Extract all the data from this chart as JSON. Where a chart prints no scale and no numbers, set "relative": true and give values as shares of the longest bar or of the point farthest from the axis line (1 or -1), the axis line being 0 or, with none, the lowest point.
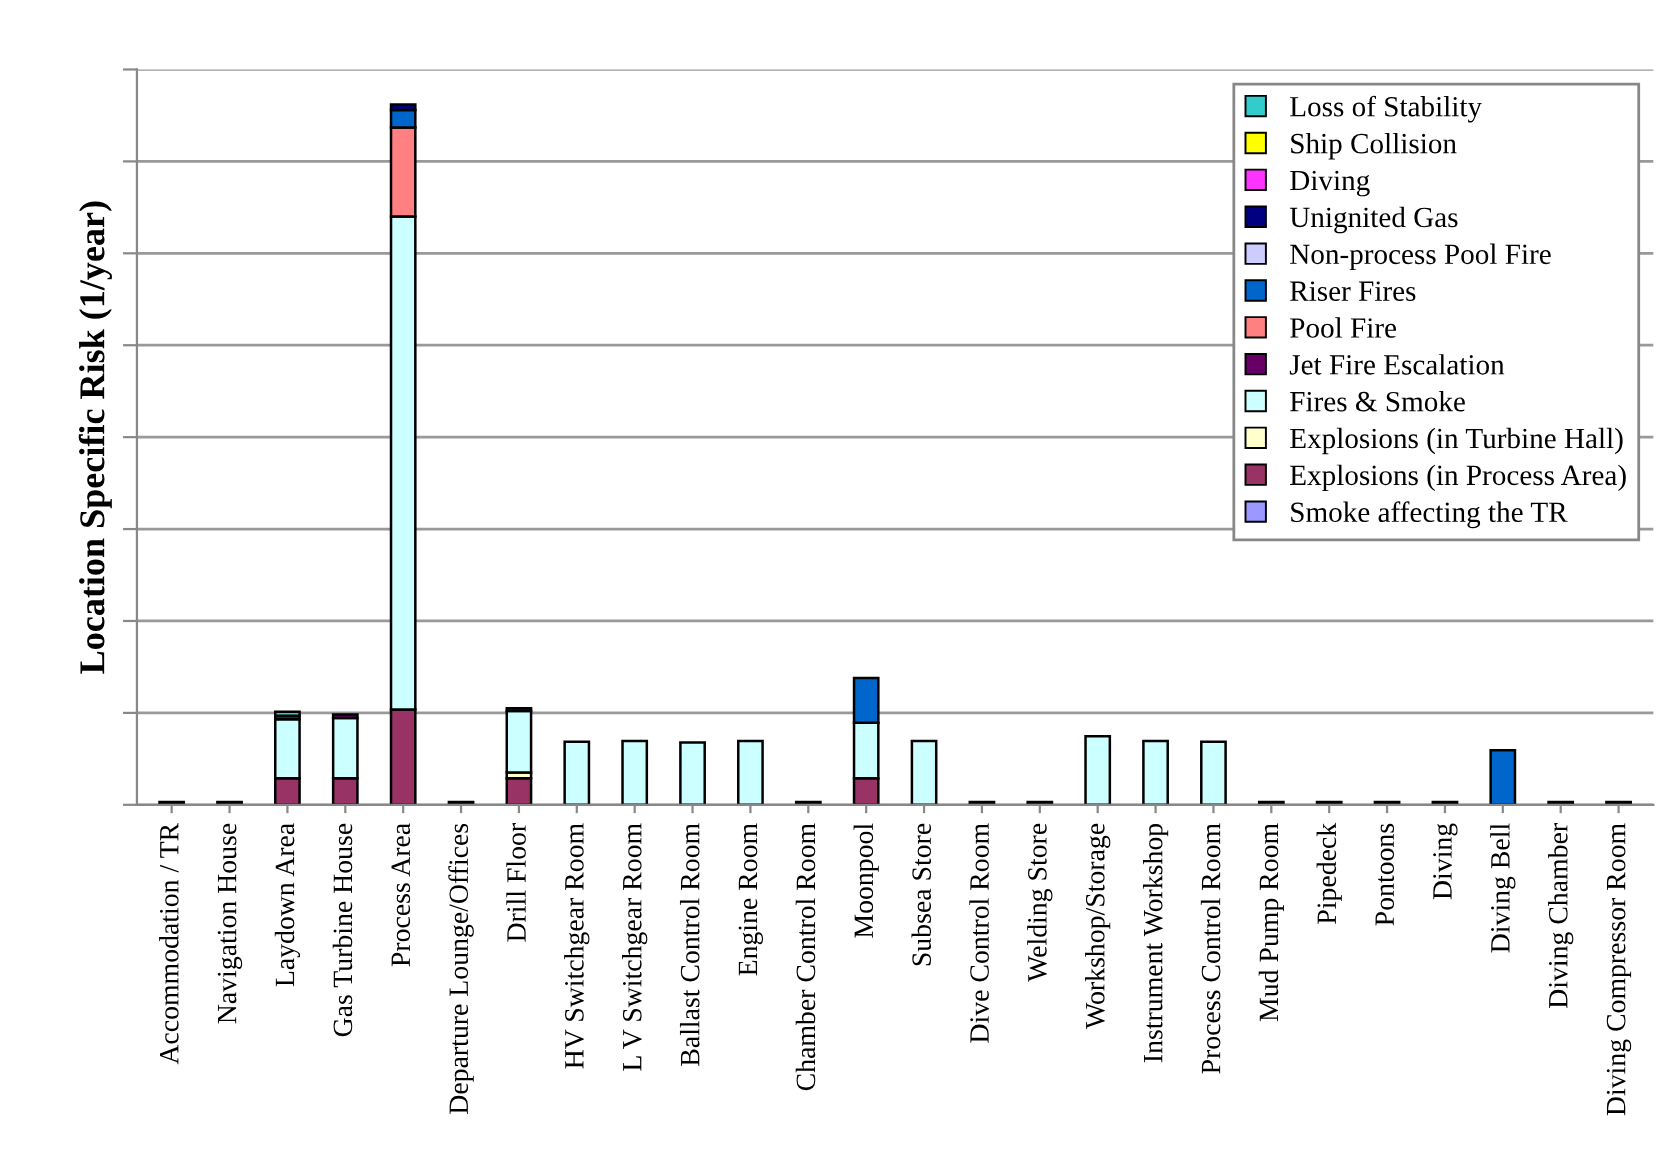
{
  "chart_data": {
    "type": "bar",
    "stacked": true,
    "relative": true,
    "ylabel": "Location Specific Risk (1/year)",
    "grid": "y",
    "legend": "top right",
    "categories": [
      "Accommodation / TR",
      "Navigation House",
      "Laydown Area",
      "Gas Turbine House",
      "Process Area",
      "Departure Lounge/Offices",
      "Drill Floor",
      "HV Switchgear Room",
      "L V Switchgear Room",
      "Ballast Control Room",
      "Engine Room",
      "Chamber Control Room",
      "Moonpool",
      "Subsea Store",
      "Dive Control Room",
      "Welding Store",
      "Workshop/Storage",
      "Instrument Workshop",
      "Process Control Room",
      "Mud Pump Room",
      "Pipedeck",
      "Pontoons",
      "Diving",
      "Diving Bell",
      "Diving Chamber",
      "Diving Compressor Room"
    ],
    "series": [
      {
        "name": "Smoke affecting the TR",
        "color": "#9999ff",
        "values": [
          null,
          null,
          null,
          null,
          null,
          null,
          null,
          null,
          null,
          null,
          null,
          null,
          null,
          null,
          null,
          null,
          null,
          null,
          null,
          null,
          null,
          null,
          null,
          null,
          null,
          null
        ]
      },
      {
        "name": "Explosions (in Process Area)",
        "color": "#993366",
        "values": [
          null,
          null,
          0.038,
          0.038,
          0.136,
          null,
          0.038,
          null,
          null,
          null,
          null,
          null,
          0.038,
          null,
          null,
          null,
          null,
          null,
          null,
          null,
          null,
          null,
          null,
          null,
          null,
          null
        ]
      },
      {
        "name": "Explosions (in Turbine Hall)",
        "color": "#ffffcc",
        "values": [
          null,
          null,
          null,
          null,
          null,
          null,
          0.008,
          null,
          null,
          null,
          null,
          null,
          null,
          null,
          null,
          null,
          null,
          null,
          null,
          null,
          null,
          null,
          null,
          null,
          null,
          null
        ]
      },
      {
        "name": "Fires & Smoke",
        "color": "#ccffff",
        "values": [
          null,
          null,
          0.084,
          0.086,
          0.704,
          null,
          0.088,
          0.09,
          0.091,
          0.089,
          0.091,
          null,
          0.079,
          0.091,
          null,
          null,
          0.098,
          0.091,
          0.09,
          null,
          null,
          null,
          null,
          null,
          null,
          null
        ]
      },
      {
        "name": "Jet Fire Escalation",
        "color": "#660066",
        "values": [
          0.004,
          0.004,
          0.005,
          0.005,
          null,
          0.004,
          0.004,
          null,
          null,
          null,
          null,
          0.004,
          null,
          null,
          0.004,
          0.004,
          null,
          null,
          null,
          0.004,
          0.004,
          0.004,
          0.004,
          null,
          0.004,
          0.004
        ]
      },
      {
        "name": "Pool Fire",
        "color": "#ff8080",
        "values": [
          null,
          null,
          null,
          null,
          0.127,
          null,
          null,
          null,
          null,
          null,
          null,
          null,
          null,
          null,
          null,
          null,
          null,
          null,
          null,
          null,
          null,
          null,
          null,
          null,
          null,
          null
        ]
      },
      {
        "name": "Riser Fires",
        "color": "#0066cc",
        "values": [
          null,
          null,
          null,
          null,
          0.025,
          null,
          null,
          null,
          null,
          null,
          null,
          null,
          0.064,
          null,
          null,
          null,
          null,
          null,
          null,
          null,
          null,
          null,
          null,
          0.078,
          null,
          null
        ]
      },
      {
        "name": "Non-process Pool Fire",
        "color": "#ccccff",
        "values": [
          null,
          null,
          null,
          null,
          null,
          null,
          null,
          null,
          null,
          null,
          null,
          null,
          null,
          null,
          null,
          null,
          null,
          null,
          null,
          null,
          null,
          null,
          null,
          null,
          null,
          null
        ]
      },
      {
        "name": "Unignited Gas",
        "color": "#000080",
        "values": [
          null,
          null,
          null,
          null,
          0.008,
          null,
          null,
          null,
          null,
          null,
          null,
          null,
          null,
          null,
          null,
          null,
          null,
          null,
          null,
          null,
          null,
          null,
          null,
          null,
          null,
          null
        ]
      },
      {
        "name": "Diving",
        "color": "#ff33ff",
        "values": [
          null,
          null,
          null,
          null,
          null,
          null,
          null,
          null,
          null,
          null,
          null,
          null,
          null,
          null,
          null,
          null,
          null,
          null,
          null,
          null,
          null,
          null,
          null,
          null,
          null,
          null
        ]
      },
      {
        "name": "Ship Collision",
        "color": "#ffff00",
        "values": [
          null,
          null,
          null,
          null,
          null,
          null,
          null,
          null,
          null,
          null,
          null,
          null,
          null,
          null,
          null,
          null,
          null,
          null,
          null,
          null,
          null,
          null,
          null,
          null,
          null,
          null
        ]
      },
      {
        "name": "Loss of Stability",
        "color": "#33cccc",
        "values": [
          null,
          null,
          0.006,
          null,
          null,
          null,
          null,
          null,
          null,
          null,
          null,
          null,
          null,
          null,
          null,
          null,
          null,
          null,
          null,
          null,
          null,
          null,
          null,
          null,
          null,
          null
        ]
      }
    ]
  }
}
